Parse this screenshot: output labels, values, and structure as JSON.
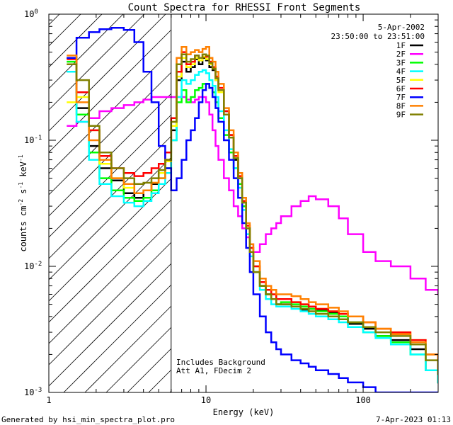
{
  "chart_data": {
    "type": "line",
    "title": "Count Spectra for RHESSI Front Segments",
    "xlabel": "Energy (keV)",
    "ylabel_base": "counts cm",
    "ylabel_exp1": "-2",
    "ylabel_mid": " s",
    "ylabel_exp2": "-1",
    "ylabel_end": " keV",
    "ylabel_exp3": "-1",
    "xscale": "log",
    "yscale": "log",
    "xlim": [
      1,
      300
    ],
    "ylim": [
      0.001,
      1
    ],
    "x_tick_labels": [
      {
        "value": 1,
        "label": "1"
      },
      {
        "value": 10,
        "label": "10"
      },
      {
        "value": 100,
        "label": "100"
      }
    ],
    "y_tick_labels": [
      {
        "value": 1,
        "base": "10",
        "exp": "0"
      },
      {
        "value": 0.1,
        "base": "10",
        "exp": "-1"
      },
      {
        "value": 0.01,
        "base": "10",
        "exp": "-2"
      },
      {
        "value": 0.001,
        "base": "10",
        "exp": "-3"
      }
    ],
    "date": "5-Apr-2002",
    "time_range": "23:50:00 to 23:51:00",
    "annotation_lines": [
      "Includes Background",
      "Att A1, FDecim 2"
    ],
    "shaded_limit_keV": 6,
    "footer_left": "Generated by hsi_min_spectra_plot.pro",
    "footer_right": "7-Apr-2023 01:13",
    "series": [
      {
        "name": "1F",
        "color": "#000000",
        "x": [
          1.3,
          1.5,
          1.8,
          2.1,
          2.5,
          3,
          3.5,
          4,
          4.5,
          5,
          5.5,
          6,
          6.5,
          7,
          7.5,
          8,
          8.5,
          9,
          9.5,
          10,
          10.5,
          11,
          11.5,
          12,
          13,
          14,
          15,
          16,
          17,
          18,
          19,
          20,
          22,
          24,
          26,
          28,
          30,
          35,
          40,
          45,
          50,
          60,
          70,
          80,
          100,
          120,
          150,
          200,
          250,
          300
        ],
        "y": [
          0.45,
          0.18,
          0.09,
          0.06,
          0.048,
          0.038,
          0.035,
          0.04,
          0.045,
          0.055,
          0.07,
          0.12,
          0.3,
          0.42,
          0.35,
          0.38,
          0.44,
          0.4,
          0.45,
          0.43,
          0.38,
          0.36,
          0.3,
          0.25,
          0.17,
          0.11,
          0.07,
          0.05,
          0.03,
          0.02,
          0.013,
          0.009,
          0.007,
          0.006,
          0.0055,
          0.005,
          0.005,
          0.0048,
          0.0045,
          0.0046,
          0.0045,
          0.0043,
          0.004,
          0.0035,
          0.0032,
          0.0028,
          0.0026,
          0.0022,
          0.0015,
          0.0012
        ]
      },
      {
        "name": "2F",
        "color": "#ff00ff",
        "x": [
          1.3,
          1.5,
          1.8,
          2.1,
          2.5,
          3,
          3.5,
          4,
          4.5,
          5,
          5.5,
          6,
          6.5,
          7,
          7.5,
          8,
          8.5,
          9,
          9.5,
          10,
          10.5,
          11,
          11.5,
          12,
          13,
          14,
          15,
          16,
          17,
          18,
          19,
          20,
          22,
          24,
          26,
          28,
          30,
          35,
          40,
          45,
          50,
          60,
          70,
          80,
          100,
          120,
          150,
          200,
          250,
          300
        ],
        "y": [
          0.13,
          0.14,
          0.15,
          0.17,
          0.18,
          0.19,
          0.2,
          0.21,
          0.22,
          0.22,
          0.22,
          0.22,
          0.22,
          0.22,
          0.21,
          0.2,
          0.21,
          0.22,
          0.22,
          0.2,
          0.16,
          0.12,
          0.09,
          0.07,
          0.05,
          0.04,
          0.03,
          0.025,
          0.02,
          0.017,
          0.015,
          0.013,
          0.015,
          0.018,
          0.02,
          0.022,
          0.025,
          0.03,
          0.033,
          0.036,
          0.034,
          0.03,
          0.024,
          0.018,
          0.013,
          0.011,
          0.01,
          0.008,
          0.0065,
          0.006
        ]
      },
      {
        "name": "3F",
        "color": "#00ff00",
        "x": [
          1.3,
          1.5,
          1.8,
          2.1,
          2.5,
          3,
          3.5,
          4,
          4.5,
          5,
          5.5,
          6,
          6.5,
          7,
          7.5,
          8,
          8.5,
          9,
          9.5,
          10,
          10.5,
          11,
          11.5,
          12,
          13,
          14,
          15,
          16,
          17,
          18,
          19,
          20,
          22,
          24,
          26,
          28,
          30,
          35,
          40,
          45,
          50,
          60,
          70,
          80,
          100,
          120,
          150,
          200,
          250,
          300
        ],
        "y": [
          0.42,
          0.16,
          0.08,
          0.05,
          0.04,
          0.035,
          0.033,
          0.035,
          0.04,
          0.05,
          0.06,
          0.1,
          0.2,
          0.25,
          0.2,
          0.22,
          0.25,
          0.26,
          0.28,
          0.28,
          0.26,
          0.24,
          0.2,
          0.15,
          0.11,
          0.08,
          0.06,
          0.045,
          0.03,
          0.02,
          0.013,
          0.01,
          0.007,
          0.006,
          0.0055,
          0.005,
          0.0052,
          0.005,
          0.0048,
          0.0046,
          0.0044,
          0.0042,
          0.004,
          0.0036,
          0.003,
          0.0028,
          0.0025,
          0.002,
          0.0015,
          0.0012
        ]
      },
      {
        "name": "4F",
        "color": "#00ffff",
        "x": [
          1.3,
          1.5,
          1.8,
          2.1,
          2.5,
          3,
          3.5,
          4,
          4.5,
          5,
          5.5,
          6,
          6.5,
          7,
          7.5,
          8,
          8.5,
          9,
          9.5,
          10,
          10.5,
          11,
          11.5,
          12,
          13,
          14,
          15,
          16,
          17,
          18,
          19,
          20,
          22,
          24,
          26,
          28,
          30,
          35,
          40,
          45,
          50,
          60,
          70,
          80,
          100,
          120,
          150,
          200,
          250,
          300
        ],
        "y": [
          0.35,
          0.14,
          0.07,
          0.045,
          0.036,
          0.032,
          0.03,
          0.033,
          0.038,
          0.045,
          0.055,
          0.1,
          0.22,
          0.3,
          0.28,
          0.3,
          0.33,
          0.35,
          0.36,
          0.34,
          0.3,
          0.27,
          0.22,
          0.17,
          0.12,
          0.085,
          0.06,
          0.042,
          0.028,
          0.018,
          0.012,
          0.009,
          0.0065,
          0.0055,
          0.005,
          0.0048,
          0.0048,
          0.0046,
          0.0044,
          0.0042,
          0.004,
          0.0038,
          0.0036,
          0.0033,
          0.003,
          0.0027,
          0.0024,
          0.002,
          0.0015,
          0.0012
        ]
      },
      {
        "name": "5F",
        "color": "#ffff00",
        "x": [
          1.3,
          1.5,
          1.8,
          2.1,
          2.5,
          3,
          3.5,
          4,
          4.5,
          5,
          5.5,
          6,
          6.5,
          7,
          7.5,
          8,
          8.5,
          9,
          9.5,
          10,
          10.5,
          11,
          11.5,
          12,
          13,
          14,
          15,
          16,
          17,
          18,
          19,
          20,
          22,
          24,
          26,
          28,
          30,
          35,
          40,
          45,
          50,
          60,
          70,
          80,
          100,
          120,
          150,
          200,
          250,
          300
        ],
        "y": [
          0.2,
          0.22,
          0.12,
          0.065,
          0.05,
          0.042,
          0.038,
          0.04,
          0.046,
          0.055,
          0.068,
          0.13,
          0.32,
          0.45,
          0.38,
          0.4,
          0.45,
          0.43,
          0.46,
          0.44,
          0.4,
          0.37,
          0.3,
          0.24,
          0.16,
          0.11,
          0.075,
          0.052,
          0.033,
          0.021,
          0.014,
          0.01,
          0.0075,
          0.0065,
          0.006,
          0.0055,
          0.0055,
          0.0052,
          0.005,
          0.0048,
          0.0046,
          0.0044,
          0.0042,
          0.004,
          0.0036,
          0.0032,
          0.003,
          0.0026,
          0.002,
          0.0015
        ]
      },
      {
        "name": "6F",
        "color": "#ff0000",
        "x": [
          1.3,
          1.5,
          1.8,
          2.1,
          2.5,
          3,
          3.5,
          4,
          4.5,
          5,
          5.5,
          6,
          6.5,
          7,
          7.5,
          8,
          8.5,
          9,
          9.5,
          10,
          10.5,
          11,
          11.5,
          12,
          13,
          14,
          15,
          16,
          17,
          18,
          19,
          20,
          22,
          24,
          26,
          28,
          30,
          35,
          40,
          45,
          50,
          60,
          70,
          80,
          100,
          120,
          150,
          200,
          250,
          300
        ],
        "y": [
          0.44,
          0.24,
          0.12,
          0.075,
          0.06,
          0.055,
          0.052,
          0.055,
          0.06,
          0.065,
          0.08,
          0.15,
          0.35,
          0.5,
          0.4,
          0.42,
          0.47,
          0.45,
          0.48,
          0.46,
          0.42,
          0.38,
          0.32,
          0.26,
          0.17,
          0.11,
          0.075,
          0.052,
          0.033,
          0.021,
          0.014,
          0.01,
          0.0075,
          0.0065,
          0.006,
          0.0055,
          0.0055,
          0.0052,
          0.005,
          0.0048,
          0.0046,
          0.0044,
          0.0042,
          0.004,
          0.0036,
          0.0032,
          0.003,
          0.0026,
          0.002,
          0.0015
        ]
      },
      {
        "name": "7F",
        "color": "#0000ff",
        "x": [
          1.3,
          1.5,
          1.8,
          2.1,
          2.5,
          3,
          3.5,
          4,
          4.5,
          5,
          5.5,
          6,
          6.5,
          7,
          7.5,
          8,
          8.5,
          9,
          9.5,
          10,
          10.5,
          11,
          11.5,
          12,
          13,
          14,
          15,
          16,
          17,
          18,
          19,
          20,
          22,
          24,
          26,
          28,
          30,
          35,
          40,
          45,
          50,
          60,
          70,
          80,
          100,
          120,
          150,
          200,
          250,
          300
        ],
        "y": [
          0.45,
          0.65,
          0.72,
          0.76,
          0.78,
          0.75,
          0.6,
          0.35,
          0.2,
          0.09,
          0.06,
          0.04,
          0.05,
          0.07,
          0.1,
          0.12,
          0.15,
          0.2,
          0.25,
          0.28,
          0.26,
          0.22,
          0.18,
          0.14,
          0.1,
          0.07,
          0.05,
          0.035,
          0.022,
          0.014,
          0.009,
          0.006,
          0.004,
          0.003,
          0.0025,
          0.0022,
          0.002,
          0.0018,
          0.0017,
          0.0016,
          0.0015,
          0.0014,
          0.0013,
          0.0012,
          0.0011,
          0.001,
          0.001,
          0.001,
          0.001,
          0.001
        ]
      },
      {
        "name": "8F",
        "color": "#ff8000",
        "x": [
          1.3,
          1.5,
          1.8,
          2.1,
          2.5,
          3,
          3.5,
          4,
          4.5,
          5,
          5.5,
          6,
          6.5,
          7,
          7.5,
          8,
          8.5,
          9,
          9.5,
          10,
          10.5,
          11,
          11.5,
          12,
          13,
          14,
          15,
          16,
          17,
          18,
          19,
          20,
          22,
          24,
          26,
          28,
          30,
          35,
          40,
          45,
          50,
          60,
          70,
          80,
          100,
          120,
          150,
          200,
          250,
          300
        ],
        "y": [
          0.47,
          0.2,
          0.1,
          0.07,
          0.05,
          0.045,
          0.038,
          0.04,
          0.046,
          0.05,
          0.07,
          0.14,
          0.45,
          0.55,
          0.48,
          0.5,
          0.52,
          0.5,
          0.53,
          0.55,
          0.45,
          0.42,
          0.35,
          0.28,
          0.18,
          0.12,
          0.08,
          0.055,
          0.035,
          0.022,
          0.015,
          0.011,
          0.008,
          0.007,
          0.0065,
          0.006,
          0.006,
          0.0058,
          0.0055,
          0.0052,
          0.005,
          0.0047,
          0.0044,
          0.004,
          0.0036,
          0.0032,
          0.0029,
          0.0025,
          0.002,
          0.0015
        ]
      },
      {
        "name": "9F",
        "color": "#808000",
        "x": [
          1.3,
          1.5,
          1.8,
          2.1,
          2.5,
          3,
          3.5,
          4,
          4.5,
          5,
          5.5,
          6,
          6.5,
          7,
          7.5,
          8,
          8.5,
          9,
          9.5,
          10,
          10.5,
          11,
          11.5,
          12,
          13,
          14,
          15,
          16,
          17,
          18,
          19,
          20,
          22,
          24,
          26,
          28,
          30,
          35,
          40,
          45,
          50,
          60,
          70,
          80,
          100,
          120,
          150,
          200,
          250,
          300
        ],
        "y": [
          0.4,
          0.3,
          0.13,
          0.08,
          0.06,
          0.05,
          0.045,
          0.046,
          0.05,
          0.058,
          0.07,
          0.14,
          0.4,
          0.48,
          0.42,
          0.44,
          0.47,
          0.45,
          0.48,
          0.47,
          0.41,
          0.37,
          0.31,
          0.25,
          0.16,
          0.105,
          0.072,
          0.05,
          0.032,
          0.02,
          0.013,
          0.009,
          0.007,
          0.006,
          0.0055,
          0.005,
          0.005,
          0.0048,
          0.0046,
          0.0044,
          0.0042,
          0.004,
          0.0038,
          0.0036,
          0.0033,
          0.003,
          0.0028,
          0.0024,
          0.0018,
          0.0014
        ]
      }
    ]
  }
}
